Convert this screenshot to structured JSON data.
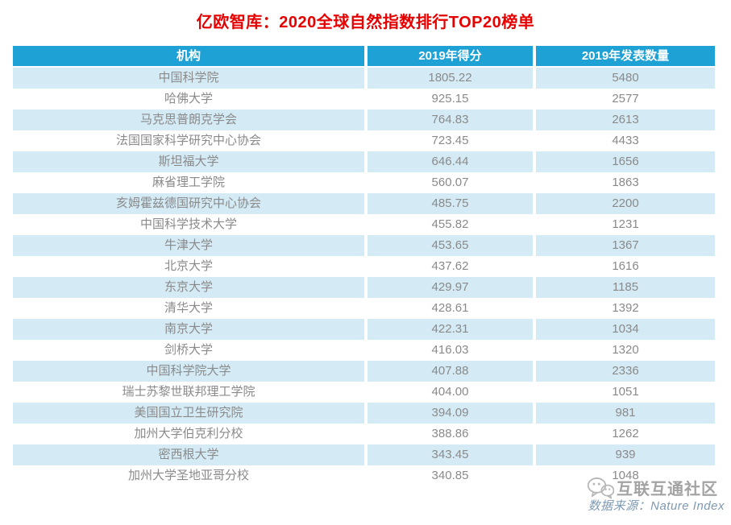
{
  "title": "亿欧智库：2020全球自然指数排行TOP20榜单",
  "table": {
    "columns": [
      "机构",
      "2019年得分",
      "2019年发表数量"
    ],
    "rows": [
      {
        "institution": "中国科学院",
        "score": "1805.22",
        "publications": "5480"
      },
      {
        "institution": "哈佛大学",
        "score": "925.15",
        "publications": "2577"
      },
      {
        "institution": "马克思普朗克学会",
        "score": "764.83",
        "publications": "2613"
      },
      {
        "institution": "法国国家科学研究中心协会",
        "score": "723.45",
        "publications": "4433"
      },
      {
        "institution": "斯坦福大学",
        "score": "646.44",
        "publications": "1656"
      },
      {
        "institution": "麻省理工学院",
        "score": "560.07",
        "publications": "1863"
      },
      {
        "institution": "亥姆霍兹德国研究中心协会",
        "score": "485.75",
        "publications": "2200"
      },
      {
        "institution": "中国科学技术大学",
        "score": "455.82",
        "publications": "1231"
      },
      {
        "institution": "牛津大学",
        "score": "453.65",
        "publications": "1367"
      },
      {
        "institution": "北京大学",
        "score": "437.62",
        "publications": "1616"
      },
      {
        "institution": "东京大学",
        "score": "429.97",
        "publications": "1185"
      },
      {
        "institution": "清华大学",
        "score": "428.61",
        "publications": "1392"
      },
      {
        "institution": "南京大学",
        "score": "422.31",
        "publications": "1034"
      },
      {
        "institution": "剑桥大学",
        "score": "416.03",
        "publications": "1320"
      },
      {
        "institution": "中国科学院大学",
        "score": "407.88",
        "publications": "2336"
      },
      {
        "institution": "瑞士苏黎世联邦理工学院",
        "score": "404.00",
        "publications": "1051"
      },
      {
        "institution": "美国国立卫生研究院",
        "score": "394.09",
        "publications": "981"
      },
      {
        "institution": "加州大学伯克利分校",
        "score": "388.86",
        "publications": "1262"
      },
      {
        "institution": "密西根大学",
        "score": "343.45",
        "publications": "939"
      },
      {
        "institution": "加州大学圣地亚哥分校",
        "score": "340.85",
        "publications": "1048"
      }
    ]
  },
  "watermark": {
    "text": "互联互通社区",
    "icon": "wechat-icon"
  },
  "source": "数据来源：Nature Index",
  "colors": {
    "title_red": "#e60000",
    "header_bg": "#1ea1d4",
    "row_alt_bg": "#d4eaf5",
    "cell_text": "#8a8a8a",
    "header_text": "#ffffff",
    "source_text": "#7e99b3",
    "watermark_text": "#a3a3a3"
  },
  "chart_data": {
    "type": "table",
    "title": "亿欧智库：2020全球自然指数排行TOP20榜单",
    "columns": [
      "机构",
      "2019年得分",
      "2019年发表数量"
    ],
    "rows": [
      [
        "中国科学院",
        1805.22,
        5480
      ],
      [
        "哈佛大学",
        925.15,
        2577
      ],
      [
        "马克思普朗克学会",
        764.83,
        2613
      ],
      [
        "法国国家科学研究中心协会",
        723.45,
        4433
      ],
      [
        "斯坦福大学",
        646.44,
        1656
      ],
      [
        "麻省理工学院",
        560.07,
        1863
      ],
      [
        "亥姆霍兹德国研究中心协会",
        485.75,
        2200
      ],
      [
        "中国科学技术大学",
        455.82,
        1231
      ],
      [
        "牛津大学",
        453.65,
        1367
      ],
      [
        "北京大学",
        437.62,
        1616
      ],
      [
        "东京大学",
        429.97,
        1185
      ],
      [
        "清华大学",
        428.61,
        1392
      ],
      [
        "南京大学",
        422.31,
        1034
      ],
      [
        "剑桥大学",
        416.03,
        1320
      ],
      [
        "中国科学院大学",
        407.88,
        2336
      ],
      [
        "瑞士苏黎世联邦理工学院",
        404.0,
        1051
      ],
      [
        "美国国立卫生研究院",
        394.09,
        981
      ],
      [
        "加州大学伯克利分校",
        388.86,
        1262
      ],
      [
        "密西根大学",
        343.45,
        939
      ],
      [
        "加州大学圣地亚哥分校",
        340.85,
        1048
      ]
    ],
    "source": "数据来源：Nature Index"
  }
}
